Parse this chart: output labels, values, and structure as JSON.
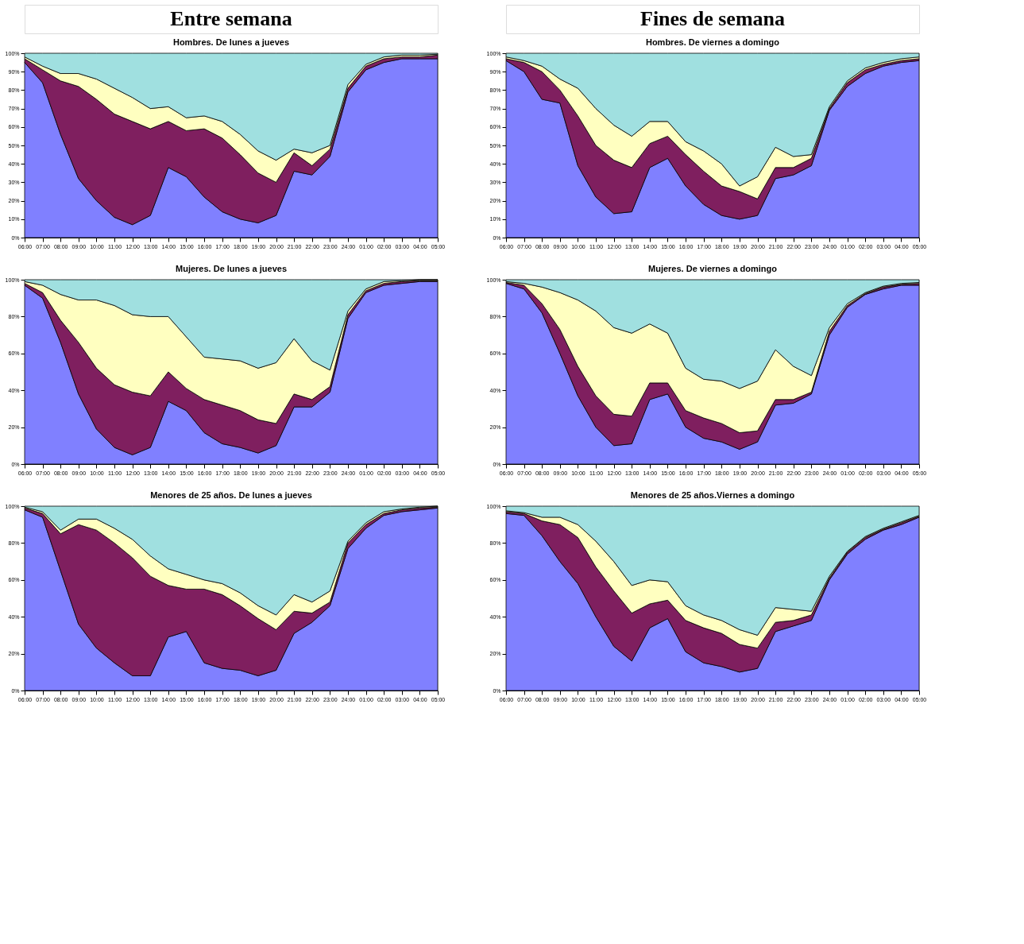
{
  "chart_data": [
    {
      "type": "area",
      "stacked": true,
      "title": "Hombres. De lunes a jueves",
      "annotations": [
        "Entre semana"
      ],
      "categories": [
        "06:00",
        "07:00",
        "08:00",
        "09:00",
        "10:00",
        "11:00",
        "12:00",
        "13:00",
        "14:00",
        "15:00",
        "16:00",
        "17:00",
        "18:00",
        "19:00",
        "20:00",
        "21:00",
        "22:00",
        "23:00",
        "24:00",
        "01:00",
        "02:00",
        "03:00",
        "04:00",
        "05:00"
      ],
      "ylim": [
        0,
        100
      ],
      "yticks": [
        {
          "value": 0,
          "label": "0%"
        },
        {
          "value": 10,
          "label": "10%"
        },
        {
          "value": 20,
          "label": "20%"
        },
        {
          "value": 30,
          "label": "30%"
        },
        {
          "value": 40,
          "label": "40%"
        },
        {
          "value": 50,
          "label": "50%"
        },
        {
          "value": 60,
          "label": "60%"
        },
        {
          "value": 70,
          "label": "70%"
        },
        {
          "value": 80,
          "label": "80%"
        },
        {
          "value": 90,
          "label": "90%"
        },
        {
          "value": 100,
          "label": "100%"
        }
      ],
      "series": [
        {
          "color": "#8080ff",
          "values": [
            95,
            84,
            56,
            32,
            20,
            11,
            7,
            12,
            38,
            33,
            22,
            14,
            10,
            8,
            12,
            36,
            34,
            44,
            79,
            91,
            95,
            97,
            97,
            97
          ]
        },
        {
          "color": "#7f1f5f",
          "values": [
            2,
            7,
            29,
            50,
            55,
            56,
            56,
            47,
            25,
            25,
            37,
            40,
            35,
            27,
            18,
            10,
            5,
            4,
            2,
            2,
            2,
            1,
            1,
            2
          ]
        },
        {
          "color": "#ffffc0",
          "values": [
            1,
            2,
            4,
            7,
            11,
            14,
            13,
            11,
            8,
            7,
            7,
            9,
            11,
            12,
            12,
            2,
            7,
            2,
            2,
            1,
            1,
            1,
            1,
            0.5
          ]
        },
        {
          "color": "#a0e0e0",
          "values": [
            2,
            7,
            11,
            11,
            14,
            19,
            24,
            30,
            29,
            35,
            34,
            37,
            44,
            53,
            58,
            52,
            54,
            50,
            17,
            6,
            2,
            1,
            1,
            0.5
          ]
        }
      ]
    },
    {
      "type": "area",
      "stacked": true,
      "title": "Hombres. De viernes a domingo",
      "annotations": [
        "Fines de semana"
      ],
      "categories": [
        "06:00",
        "07:00",
        "08:00",
        "09:00",
        "10:00",
        "11:00",
        "12:00",
        "13:00",
        "14:00",
        "15:00",
        "16:00",
        "17:00",
        "18:00",
        "19:00",
        "20:00",
        "21:00",
        "22:00",
        "23:00",
        "24:00",
        "01:00",
        "02:00",
        "03:00",
        "04:00",
        "05:00"
      ],
      "ylim": [
        0,
        100
      ],
      "yticks": [
        {
          "value": 0,
          "label": "0%"
        },
        {
          "value": 10,
          "label": "10%"
        },
        {
          "value": 20,
          "label": "20%"
        },
        {
          "value": 30,
          "label": "30%"
        },
        {
          "value": 40,
          "label": "40%"
        },
        {
          "value": 50,
          "label": "50%"
        },
        {
          "value": 60,
          "label": "60%"
        },
        {
          "value": 70,
          "label": "70%"
        },
        {
          "value": 80,
          "label": "80%"
        },
        {
          "value": 90,
          "label": "90%"
        },
        {
          "value": 100,
          "label": "100%"
        }
      ],
      "series": [
        {
          "color": "#8080ff",
          "values": [
            96,
            90,
            75,
            73,
            39,
            22,
            13,
            14,
            38,
            43,
            28,
            18,
            12,
            10,
            12,
            32,
            34,
            39,
            69,
            82,
            89,
            93,
            95,
            96
          ]
        },
        {
          "color": "#7f1f5f",
          "values": [
            1,
            5,
            15,
            7,
            27,
            28,
            29,
            24,
            13,
            12,
            17,
            18,
            16,
            15,
            9,
            6,
            4,
            4,
            1,
            2,
            2,
            1,
            1,
            1
          ]
        },
        {
          "color": "#ffffc0",
          "values": [
            1,
            1,
            3,
            6,
            15,
            20,
            19,
            17,
            12,
            8,
            7,
            11,
            12,
            3,
            12,
            11,
            6,
            2,
            1,
            1,
            1,
            1,
            1,
            1
          ]
        },
        {
          "color": "#a0e0e0",
          "values": [
            2,
            4,
            7,
            14,
            19,
            30,
            39,
            45,
            37,
            37,
            48,
            53,
            60,
            72,
            67,
            51,
            56,
            55,
            29,
            15,
            8,
            5,
            3,
            2
          ]
        }
      ]
    },
    {
      "type": "area",
      "stacked": true,
      "title": "Mujeres. De lunes a jueves",
      "categories": [
        "06:00",
        "07:00",
        "08:00",
        "09:00",
        "10:00",
        "11:00",
        "12:00",
        "13:00",
        "14:00",
        "15:00",
        "16:00",
        "17:00",
        "18:00",
        "19:00",
        "20:00",
        "21:00",
        "22:00",
        "23:00",
        "24:00",
        "01:00",
        "02:00",
        "03:00",
        "04:00",
        "05:00"
      ],
      "ylim": [
        0,
        100
      ],
      "yticks": [
        {
          "value": 0,
          "label": "0%"
        },
        {
          "value": 20,
          "label": "20%"
        },
        {
          "value": 40,
          "label": "40%"
        },
        {
          "value": 60,
          "label": "60%"
        },
        {
          "value": 80,
          "label": "80%"
        },
        {
          "value": 100,
          "label": "100%"
        }
      ],
      "series": [
        {
          "color": "#8080ff",
          "values": [
            97,
            90,
            66,
            38,
            19,
            9,
            5,
            9,
            34,
            29,
            17,
            11,
            9,
            6,
            10,
            31,
            31,
            39,
            79,
            93,
            97,
            98,
            99,
            99
          ]
        },
        {
          "color": "#7f1f5f",
          "values": [
            1,
            3,
            12,
            28,
            33,
            34,
            34,
            28,
            16,
            12,
            18,
            21,
            20,
            18,
            12,
            7,
            4,
            3,
            2,
            1,
            1,
            1,
            0.5,
            0.5
          ]
        },
        {
          "color": "#ffffc0",
          "values": [
            1,
            4,
            14,
            23,
            37,
            43,
            42,
            43,
            30,
            28,
            23,
            25,
            27,
            28,
            33,
            30,
            21,
            9,
            2,
            1,
            1,
            0.5,
            0.5,
            0.5
          ]
        },
        {
          "color": "#a0e0e0",
          "values": [
            1,
            3,
            8,
            11,
            11,
            14,
            19,
            20,
            20,
            31,
            42,
            43,
            44,
            48,
            45,
            32,
            44,
            49,
            17,
            5,
            1,
            0.5,
            0,
            0
          ]
        }
      ]
    },
    {
      "type": "area",
      "stacked": true,
      "title": "Mujeres. De viernes a domingo",
      "categories": [
        "06:00",
        "07:00",
        "08:00",
        "09:00",
        "10:00",
        "11:00",
        "12:00",
        "13:00",
        "14:00",
        "15:00",
        "16:00",
        "17:00",
        "18:00",
        "19:00",
        "20:00",
        "21:00",
        "22:00",
        "23:00",
        "24:00",
        "01:00",
        "02:00",
        "03:00",
        "04:00",
        "05:00"
      ],
      "ylim": [
        0,
        100
      ],
      "yticks": [
        {
          "value": 0,
          "label": "0%"
        },
        {
          "value": 20,
          "label": "20%"
        },
        {
          "value": 40,
          "label": "40%"
        },
        {
          "value": 60,
          "label": "60%"
        },
        {
          "value": 80,
          "label": "80%"
        },
        {
          "value": 100,
          "label": "100%"
        }
      ],
      "series": [
        {
          "color": "#8080ff",
          "values": [
            98,
            95,
            82,
            60,
            37,
            20,
            10,
            11,
            35,
            38,
            20,
            14,
            12,
            8,
            12,
            32,
            33,
            38,
            70,
            85,
            92,
            95,
            97,
            97
          ]
        },
        {
          "color": "#7f1f5f",
          "values": [
            0.5,
            2,
            5,
            13,
            16,
            17,
            17,
            15,
            9,
            6,
            9,
            11,
            10,
            9,
            6,
            3,
            2,
            1,
            2,
            1,
            0.5,
            1,
            0.5,
            1
          ]
        },
        {
          "color": "#ffffc0",
          "values": [
            0.5,
            1,
            9,
            20,
            36,
            46,
            47,
            45,
            32,
            27,
            23,
            21,
            23,
            24,
            27,
            27,
            18,
            9,
            2,
            1,
            0.5,
            0.5,
            0.5,
            0.5
          ]
        },
        {
          "color": "#a0e0e0",
          "values": [
            1,
            2,
            4,
            7,
            11,
            17,
            26,
            29,
            24,
            29,
            48,
            54,
            55,
            59,
            55,
            38,
            47,
            52,
            26,
            13,
            7,
            3.5,
            2,
            1.5
          ]
        }
      ]
    },
    {
      "type": "area",
      "stacked": true,
      "title": "Menores de 25 años. De lunes a jueves",
      "categories": [
        "06:00",
        "07:00",
        "08:00",
        "09:00",
        "10:00",
        "11:00",
        "12:00",
        "13:00",
        "14:00",
        "15:00",
        "16:00",
        "17:00",
        "18:00",
        "19:00",
        "20:00",
        "21:00",
        "22:00",
        "23:00",
        "24:00",
        "01:00",
        "02:00",
        "03:00",
        "04:00",
        "05:00"
      ],
      "ylim": [
        0,
        100
      ],
      "yticks": [
        {
          "value": 0,
          "label": "0%"
        },
        {
          "value": 20,
          "label": "20%"
        },
        {
          "value": 40,
          "label": "40%"
        },
        {
          "value": 60,
          "label": "60%"
        },
        {
          "value": 80,
          "label": "80%"
        },
        {
          "value": 100,
          "label": "100%"
        }
      ],
      "series": [
        {
          "color": "#8080ff",
          "values": [
            98,
            94,
            65,
            36,
            23,
            15,
            8,
            8,
            29,
            32,
            15,
            12,
            11,
            8,
            11,
            31,
            37,
            46,
            77,
            88,
            95,
            97,
            98,
            99
          ]
        },
        {
          "color": "#7f1f5f",
          "values": [
            1,
            2,
            20,
            54,
            64,
            65,
            64,
            54,
            28,
            23,
            40,
            40,
            35,
            31,
            22,
            12,
            5,
            2,
            3,
            2,
            1,
            1,
            1,
            0.5
          ]
        },
        {
          "color": "#ffffc0",
          "values": [
            0.5,
            1,
            2,
            3,
            6,
            8,
            10,
            11,
            9,
            8,
            5,
            6,
            7,
            7,
            8,
            9,
            6,
            6,
            1,
            1,
            1,
            0.5,
            0.5,
            0.5
          ]
        },
        {
          "color": "#a0e0e0",
          "values": [
            0.5,
            3,
            13,
            7,
            7,
            12,
            18,
            27,
            34,
            37,
            40,
            42,
            47,
            54,
            59,
            48,
            52,
            46,
            19,
            9,
            3,
            1.5,
            0.5,
            0
          ]
        }
      ]
    },
    {
      "type": "area",
      "stacked": true,
      "title": "Menores de 25 años.Viernes a domingo",
      "categories": [
        "06:00",
        "07:00",
        "08:00",
        "09:00",
        "10:00",
        "11:00",
        "12:00",
        "13:00",
        "14:00",
        "15:00",
        "16:00",
        "17:00",
        "18:00",
        "19:00",
        "20:00",
        "21:00",
        "22:00",
        "23:00",
        "24:00",
        "01:00",
        "02:00",
        "03:00",
        "04:00",
        "05:00"
      ],
      "ylim": [
        0,
        100
      ],
      "yticks": [
        {
          "value": 0,
          "label": "0%"
        },
        {
          "value": 20,
          "label": "20%"
        },
        {
          "value": 40,
          "label": "40%"
        },
        {
          "value": 60,
          "label": "60%"
        },
        {
          "value": 80,
          "label": "80%"
        },
        {
          "value": 100,
          "label": "100%"
        }
      ],
      "series": [
        {
          "color": "#8080ff",
          "values": [
            96,
            95,
            84,
            70,
            58,
            40,
            24,
            16,
            34,
            39,
            21,
            15,
            13,
            10,
            12,
            32,
            35,
            38,
            60,
            74,
            82,
            87,
            90,
            94
          ]
        },
        {
          "color": "#7f1f5f",
          "values": [
            1,
            1,
            8,
            20,
            25,
            27,
            30,
            26,
            13,
            10,
            17,
            19,
            18,
            15,
            11,
            5,
            3,
            3,
            1,
            1,
            1,
            0.5,
            1,
            0.5
          ]
        },
        {
          "color": "#ffffc0",
          "values": [
            0.5,
            0.5,
            2,
            4,
            7,
            14,
            16,
            15,
            13,
            10,
            8,
            7,
            7,
            8,
            7,
            8,
            6,
            2,
            1,
            0.5,
            0.5,
            0.5,
            0.5,
            0.5
          ]
        },
        {
          "color": "#a0e0e0",
          "values": [
            2.5,
            3.5,
            6,
            6,
            10,
            19,
            30,
            43,
            40,
            41,
            54,
            59,
            62,
            67,
            70,
            55,
            56,
            57,
            38,
            24.5,
            16.5,
            12,
            8.5,
            5
          ]
        }
      ]
    }
  ]
}
